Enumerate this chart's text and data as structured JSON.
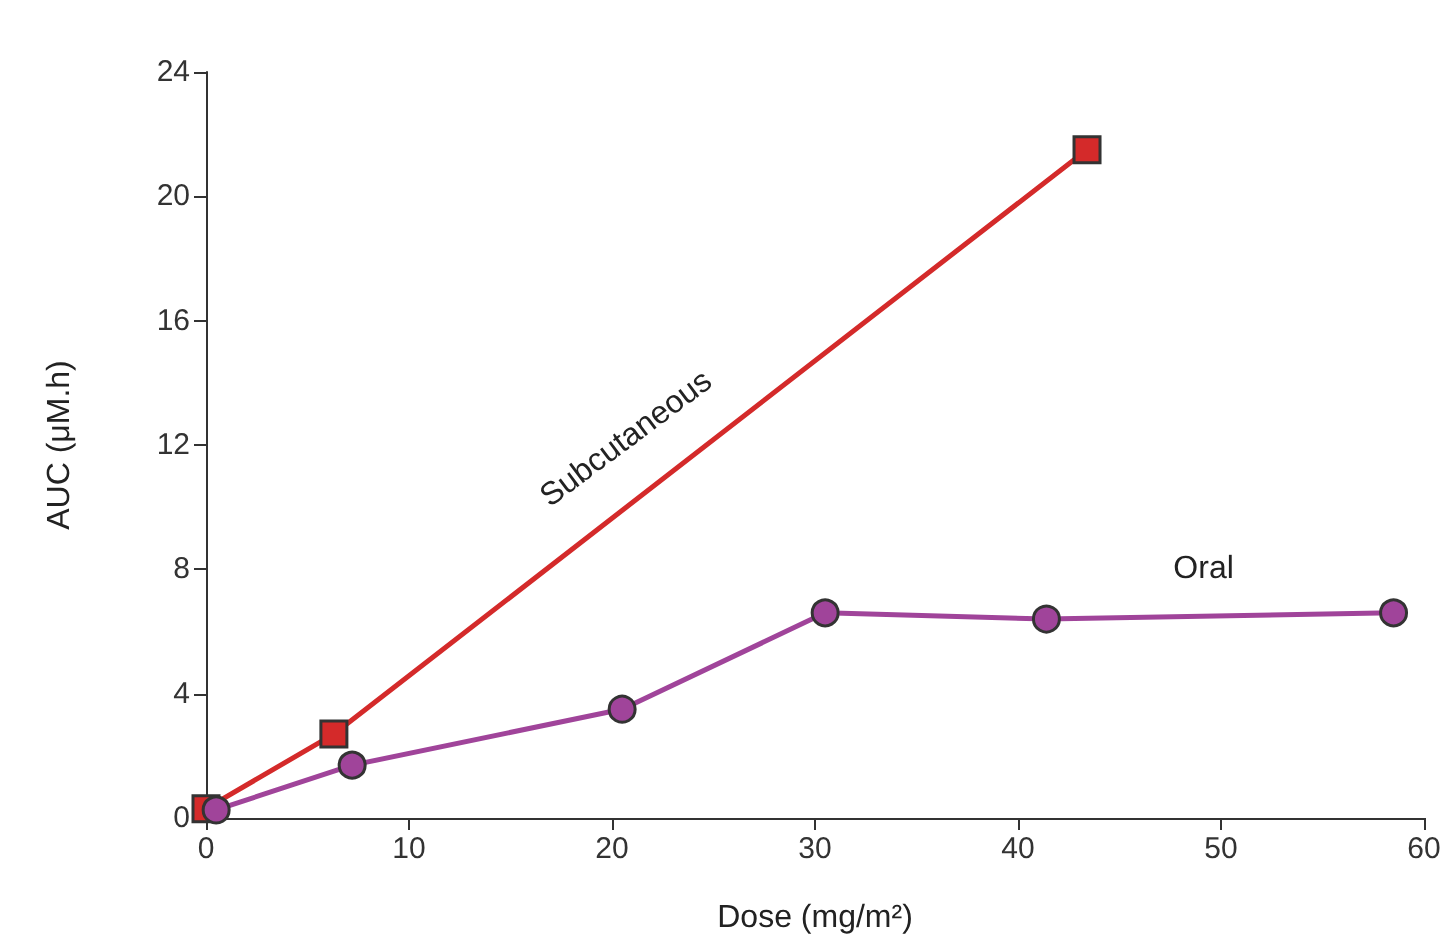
{
  "chart_data": {
    "type": "line",
    "xlabel": "Dose (mg/m²)",
    "ylabel": "AUC (μM.h)",
    "xlim": [
      0,
      60
    ],
    "xticks": [
      0,
      10,
      20,
      30,
      40,
      50,
      60
    ],
    "ylim": [
      0,
      24
    ],
    "yticks": [
      0,
      4,
      8,
      12,
      16,
      20,
      24
    ],
    "grid": false,
    "legend": false,
    "series": [
      {
        "name": "Subcutaneous",
        "color": "#d42a2a",
        "marker": "square",
        "x": [
          0,
          6.3,
          43.4
        ],
        "values": [
          0.3,
          2.7,
          21.5
        ]
      },
      {
        "name": "Oral",
        "color": "#a0449a",
        "marker": "circle",
        "x": [
          0.5,
          7.2,
          20.5,
          30.5,
          41.4,
          58.5
        ],
        "values": [
          0.26,
          1.7,
          3.5,
          6.6,
          6.4,
          6.6
        ]
      }
    ]
  }
}
